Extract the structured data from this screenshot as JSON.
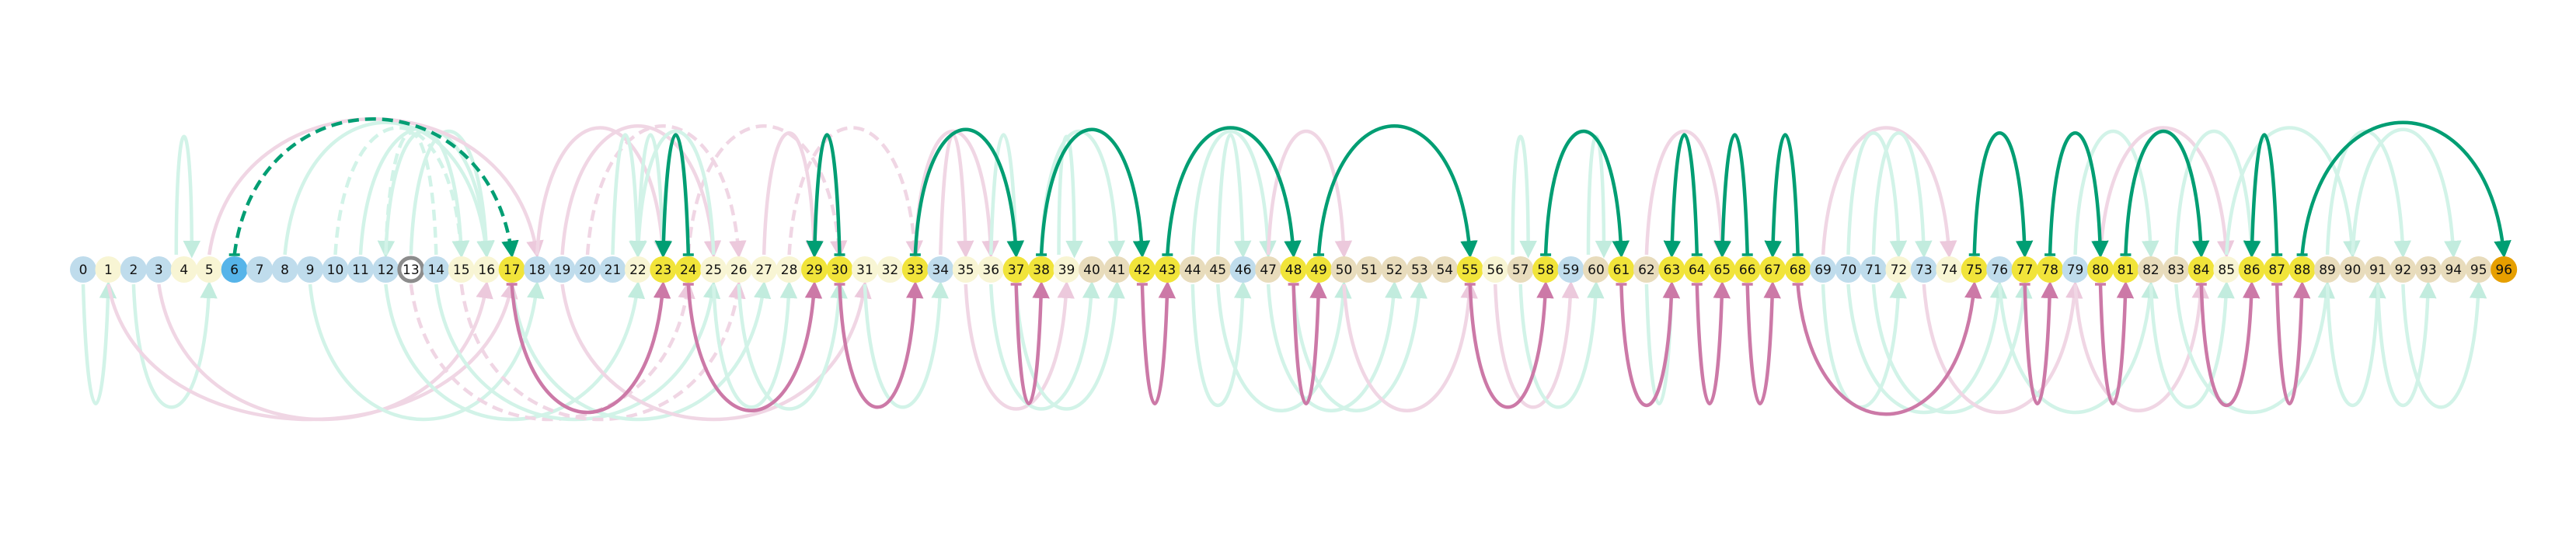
{
  "nodes": [
    {
      "id": 0,
      "label": "0",
      "kind": "blue"
    },
    {
      "id": 1,
      "label": "1",
      "kind": "cream"
    },
    {
      "id": 2,
      "label": "2",
      "kind": "blue"
    },
    {
      "id": 3,
      "label": "3",
      "kind": "blue"
    },
    {
      "id": 4,
      "label": "4",
      "kind": "cream"
    },
    {
      "id": 5,
      "label": "5",
      "kind": "cream"
    },
    {
      "id": 6,
      "label": "6",
      "kind": "start"
    },
    {
      "id": 7,
      "label": "7",
      "kind": "blue"
    },
    {
      "id": 8,
      "label": "8",
      "kind": "blue"
    },
    {
      "id": 9,
      "label": "9",
      "kind": "blue"
    },
    {
      "id": 10,
      "label": "10",
      "kind": "blue"
    },
    {
      "id": 11,
      "label": "11",
      "kind": "blue"
    },
    {
      "id": 12,
      "label": "12",
      "kind": "blue"
    },
    {
      "id": 13,
      "label": "13",
      "kind": "ring"
    },
    {
      "id": 14,
      "label": "14",
      "kind": "blue"
    },
    {
      "id": 15,
      "label": "15",
      "kind": "cream"
    },
    {
      "id": 16,
      "label": "16",
      "kind": "cream"
    },
    {
      "id": 17,
      "label": "17",
      "kind": "yellow"
    },
    {
      "id": 18,
      "label": "18",
      "kind": "blue"
    },
    {
      "id": 19,
      "label": "19",
      "kind": "blue"
    },
    {
      "id": 20,
      "label": "20",
      "kind": "blue"
    },
    {
      "id": 21,
      "label": "21",
      "kind": "blue"
    },
    {
      "id": 22,
      "label": "22",
      "kind": "cream"
    },
    {
      "id": 23,
      "label": "23",
      "kind": "yellow"
    },
    {
      "id": 24,
      "label": "24",
      "kind": "yellow"
    },
    {
      "id": 25,
      "label": "25",
      "kind": "cream"
    },
    {
      "id": 26,
      "label": "26",
      "kind": "cream"
    },
    {
      "id": 27,
      "label": "27",
      "kind": "cream"
    },
    {
      "id": 28,
      "label": "28",
      "kind": "cream"
    },
    {
      "id": 29,
      "label": "29",
      "kind": "yellow"
    },
    {
      "id": 30,
      "label": "30",
      "kind": "yellow"
    },
    {
      "id": 31,
      "label": "31",
      "kind": "cream"
    },
    {
      "id": 32,
      "label": "32",
      "kind": "cream"
    },
    {
      "id": 33,
      "label": "33",
      "kind": "yellow"
    },
    {
      "id": 34,
      "label": "34",
      "kind": "blue"
    },
    {
      "id": 35,
      "label": "35",
      "kind": "cream"
    },
    {
      "id": 36,
      "label": "36",
      "kind": "cream"
    },
    {
      "id": 37,
      "label": "37",
      "kind": "yellow"
    },
    {
      "id": 38,
      "label": "38",
      "kind": "yellow"
    },
    {
      "id": 39,
      "label": "39",
      "kind": "cream"
    },
    {
      "id": 40,
      "label": "40",
      "kind": "beige"
    },
    {
      "id": 41,
      "label": "41",
      "kind": "beige"
    },
    {
      "id": 42,
      "label": "42",
      "kind": "yellow"
    },
    {
      "id": 43,
      "label": "43",
      "kind": "yellow"
    },
    {
      "id": 44,
      "label": "44",
      "kind": "beige"
    },
    {
      "id": 45,
      "label": "45",
      "kind": "beige"
    },
    {
      "id": 46,
      "label": "46",
      "kind": "blue"
    },
    {
      "id": 47,
      "label": "47",
      "kind": "beige"
    },
    {
      "id": 48,
      "label": "48",
      "kind": "yellow"
    },
    {
      "id": 49,
      "label": "49",
      "kind": "yellow"
    },
    {
      "id": 50,
      "label": "50",
      "kind": "beige"
    },
    {
      "id": 51,
      "label": "51",
      "kind": "beige"
    },
    {
      "id": 52,
      "label": "52",
      "kind": "beige"
    },
    {
      "id": 53,
      "label": "53",
      "kind": "beige"
    },
    {
      "id": 54,
      "label": "54",
      "kind": "beige"
    },
    {
      "id": 55,
      "label": "55",
      "kind": "yellow"
    },
    {
      "id": 56,
      "label": "56",
      "kind": "cream"
    },
    {
      "id": 57,
      "label": "57",
      "kind": "beige"
    },
    {
      "id": 58,
      "label": "58",
      "kind": "yellow"
    },
    {
      "id": 59,
      "label": "59",
      "kind": "blue"
    },
    {
      "id": 60,
      "label": "60",
      "kind": "beige"
    },
    {
      "id": 61,
      "label": "61",
      "kind": "yellow"
    },
    {
      "id": 62,
      "label": "62",
      "kind": "beige"
    },
    {
      "id": 63,
      "label": "63",
      "kind": "yellow"
    },
    {
      "id": 64,
      "label": "64",
      "kind": "yellow"
    },
    {
      "id": 65,
      "label": "65",
      "kind": "yellow"
    },
    {
      "id": 66,
      "label": "66",
      "kind": "yellow"
    },
    {
      "id": 67,
      "label": "67",
      "kind": "yellow"
    },
    {
      "id": 68,
      "label": "68",
      "kind": "yellow"
    },
    {
      "id": 69,
      "label": "69",
      "kind": "blue"
    },
    {
      "id": 70,
      "label": "70",
      "kind": "blue"
    },
    {
      "id": 71,
      "label": "71",
      "kind": "blue"
    },
    {
      "id": 72,
      "label": "72",
      "kind": "cream"
    },
    {
      "id": 73,
      "label": "73",
      "kind": "blue"
    },
    {
      "id": 74,
      "label": "74",
      "kind": "cream"
    },
    {
      "id": 75,
      "label": "75",
      "kind": "yellow"
    },
    {
      "id": 76,
      "label": "76",
      "kind": "blue"
    },
    {
      "id": 77,
      "label": "77",
      "kind": "yellow"
    },
    {
      "id": 78,
      "label": "78",
      "kind": "yellow"
    },
    {
      "id": 79,
      "label": "79",
      "kind": "blue"
    },
    {
      "id": 80,
      "label": "80",
      "kind": "yellow"
    },
    {
      "id": 81,
      "label": "81",
      "kind": "yellow"
    },
    {
      "id": 82,
      "label": "82",
      "kind": "beige"
    },
    {
      "id": 83,
      "label": "83",
      "kind": "beige"
    },
    {
      "id": 84,
      "label": "84",
      "kind": "yellow"
    },
    {
      "id": 85,
      "label": "85",
      "kind": "cream"
    },
    {
      "id": 86,
      "label": "86",
      "kind": "yellow"
    },
    {
      "id": 87,
      "label": "87",
      "kind": "yellow"
    },
    {
      "id": 88,
      "label": "88",
      "kind": "yellow"
    },
    {
      "id": 89,
      "label": "89",
      "kind": "beige"
    },
    {
      "id": 90,
      "label": "90",
      "kind": "beige"
    },
    {
      "id": 91,
      "label": "91",
      "kind": "beige"
    },
    {
      "id": 92,
      "label": "92",
      "kind": "beige"
    },
    {
      "id": 93,
      "label": "93",
      "kind": "beige"
    },
    {
      "id": 94,
      "label": "94",
      "kind": "beige"
    },
    {
      "id": 95,
      "label": "95",
      "kind": "beige"
    },
    {
      "id": 96,
      "label": "96",
      "kind": "goal"
    }
  ],
  "colors": {
    "blue": "#bfdcec",
    "cream": "#f8f5d4",
    "beige": "#e8dcbc",
    "yellow": "#f1e43a",
    "start": "#56b4e9",
    "goal": "#e69f00",
    "ring": "#8c8c8c",
    "green_strong": "#009e73",
    "green_faint": "#d2f3e8",
    "pink_strong": "#cc79a7",
    "pink_faint": "#f0d6e4"
  },
  "strong_above": [
    {
      "from": 6,
      "to": 17,
      "dashed": true
    },
    {
      "from": 24,
      "to": 23
    },
    {
      "from": 30,
      "to": 29
    },
    {
      "from": 33,
      "to": 37
    },
    {
      "from": 38,
      "to": 42
    },
    {
      "from": 43,
      "to": 48
    },
    {
      "from": 49,
      "to": 55
    },
    {
      "from": 58,
      "to": 61
    },
    {
      "from": 64,
      "to": 63
    },
    {
      "from": 66,
      "to": 65
    },
    {
      "from": 68,
      "to": 67
    },
    {
      "from": 75,
      "to": 77
    },
    {
      "from": 78,
      "to": 80
    },
    {
      "from": 81,
      "to": 84
    },
    {
      "from": 87,
      "to": 86
    },
    {
      "from": 88,
      "to": 96
    }
  ],
  "strong_below": [
    {
      "from": 17,
      "to": 23
    },
    {
      "from": 24,
      "to": 29
    },
    {
      "from": 30,
      "to": 33
    },
    {
      "from": 37,
      "to": 38
    },
    {
      "from": 42,
      "to": 43
    },
    {
      "from": 48,
      "to": 49
    },
    {
      "from": 55,
      "to": 58
    },
    {
      "from": 61,
      "to": 63
    },
    {
      "from": 64,
      "to": 65
    },
    {
      "from": 66,
      "to": 67
    },
    {
      "from": 68,
      "to": 75
    },
    {
      "from": 77,
      "to": 78
    },
    {
      "from": 80,
      "to": 81
    },
    {
      "from": 84,
      "to": 86
    },
    {
      "from": 87,
      "to": 88
    }
  ],
  "faint_above": [
    {
      "from": 4,
      "to": 4,
      "color": "green"
    },
    {
      "from": 14,
      "to": 12,
      "color": "green",
      "dashed": true
    },
    {
      "from": 8,
      "to": 16,
      "color": "green"
    },
    {
      "from": 10,
      "to": 15,
      "color": "green",
      "dashed": true
    },
    {
      "from": 11,
      "to": 16,
      "color": "green"
    },
    {
      "from": 12,
      "to": 15,
      "color": "green"
    },
    {
      "from": 13,
      "to": 16,
      "color": "green"
    },
    {
      "from": 5,
      "to": 18,
      "color": "pink"
    },
    {
      "from": 18,
      "to": 23,
      "color": "pink"
    },
    {
      "from": 19,
      "to": 25,
      "color": "pink"
    },
    {
      "from": 20,
      "to": 26,
      "color": "pink",
      "dashed": true
    },
    {
      "from": 21,
      "to": 22,
      "color": "green"
    },
    {
      "from": 22,
      "to": 23,
      "color": "green"
    },
    {
      "from": 24,
      "to": 30,
      "color": "pink",
      "dashed": true
    },
    {
      "from": 25,
      "to": 22,
      "color": "green"
    },
    {
      "from": 27,
      "to": 29,
      "color": "pink"
    },
    {
      "from": 28,
      "to": 33,
      "color": "pink",
      "dashed": true
    },
    {
      "from": 33,
      "to": 36,
      "color": "pink"
    },
    {
      "from": 34,
      "to": 35,
      "color": "pink"
    },
    {
      "from": 36,
      "to": 37,
      "color": "green"
    },
    {
      "from": 38,
      "to": 41,
      "color": "green"
    },
    {
      "from": 39,
      "to": 39,
      "color": "green"
    },
    {
      "from": 44,
      "to": 47,
      "color": "green"
    },
    {
      "from": 45,
      "to": 46,
      "color": "green"
    },
    {
      "from": 47,
      "to": 50,
      "color": "pink"
    },
    {
      "from": 57,
      "to": 57,
      "color": "green"
    },
    {
      "from": 60,
      "to": 60,
      "color": "green"
    },
    {
      "from": 62,
      "to": 65,
      "color": "pink"
    },
    {
      "from": 69,
      "to": 74,
      "color": "pink"
    },
    {
      "from": 70,
      "to": 72,
      "color": "green"
    },
    {
      "from": 71,
      "to": 73,
      "color": "green"
    },
    {
      "from": 79,
      "to": 82,
      "color": "green"
    },
    {
      "from": 80,
      "to": 85,
      "color": "pink"
    },
    {
      "from": 83,
      "to": 86,
      "color": "green"
    },
    {
      "from": 85,
      "to": 90,
      "color": "green"
    },
    {
      "from": 89,
      "to": 92,
      "color": "green"
    },
    {
      "from": 90,
      "to": 94,
      "color": "green"
    }
  ],
  "faint_below": [
    {
      "from": 0,
      "to": 1,
      "color": "green"
    },
    {
      "from": 2,
      "to": 5,
      "color": "green"
    },
    {
      "from": 3,
      "to": 16,
      "color": "pink"
    },
    {
      "from": 1,
      "to": 17,
      "color": "pink"
    },
    {
      "from": 9,
      "to": 18,
      "color": "green"
    },
    {
      "from": 12,
      "to": 22,
      "color": "green"
    },
    {
      "from": 13,
      "to": 24,
      "color": "pink",
      "dashed": true
    },
    {
      "from": 14,
      "to": 25,
      "color": "green"
    },
    {
      "from": 15,
      "to": 26,
      "color": "pink",
      "dashed": true
    },
    {
      "from": 17,
      "to": 27,
      "color": "green"
    },
    {
      "from": 19,
      "to": 31,
      "color": "pink"
    },
    {
      "from": 25,
      "to": 28,
      "color": "green"
    },
    {
      "from": 26,
      "to": 30,
      "color": "green"
    },
    {
      "from": 31,
      "to": 34,
      "color": "green"
    },
    {
      "from": 35,
      "to": 39,
      "color": "pink"
    },
    {
      "from": 36,
      "to": 40,
      "color": "green"
    },
    {
      "from": 37,
      "to": 41,
      "color": "green"
    },
    {
      "from": 44,
      "to": 46,
      "color": "green"
    },
    {
      "from": 45,
      "to": 50,
      "color": "green"
    },
    {
      "from": 47,
      "to": 52,
      "color": "green"
    },
    {
      "from": 48,
      "to": 53,
      "color": "green"
    },
    {
      "from": 50,
      "to": 55,
      "color": "pink"
    },
    {
      "from": 56,
      "to": 59,
      "color": "pink"
    },
    {
      "from": 57,
      "to": 60,
      "color": "green"
    },
    {
      "from": 62,
      "to": 63,
      "color": "green"
    },
    {
      "from": 69,
      "to": 72,
      "color": "green"
    },
    {
      "from": 70,
      "to": 76,
      "color": "green"
    },
    {
      "from": 71,
      "to": 77,
      "color": "green"
    },
    {
      "from": 73,
      "to": 79,
      "color": "pink"
    },
    {
      "from": 76,
      "to": 82,
      "color": "green"
    },
    {
      "from": 79,
      "to": 84,
      "color": "pink"
    },
    {
      "from": 82,
      "to": 85,
      "color": "green"
    },
    {
      "from": 83,
      "to": 89,
      "color": "green"
    },
    {
      "from": 89,
      "to": 91,
      "color": "green"
    },
    {
      "from": 91,
      "to": 93,
      "color": "green"
    },
    {
      "from": 92,
      "to": 95,
      "color": "green"
    }
  ]
}
